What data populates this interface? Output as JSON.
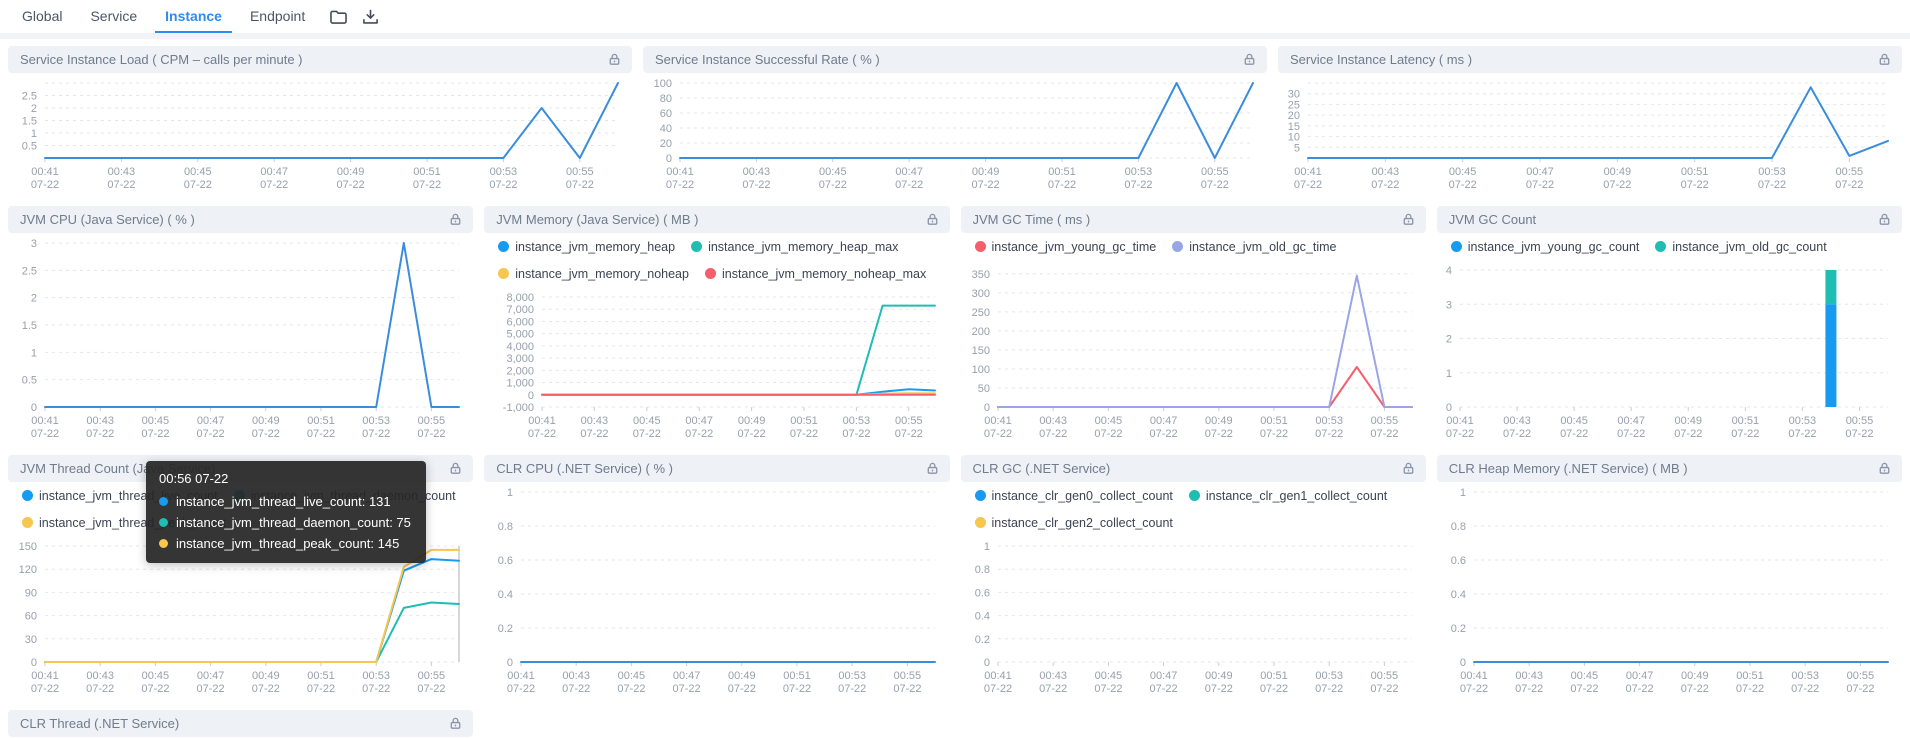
{
  "topbar": {
    "tabs": [
      {
        "label": "Global",
        "active": false
      },
      {
        "label": "Service",
        "active": false
      },
      {
        "label": "Instance",
        "active": true
      },
      {
        "label": "Endpoint",
        "active": false
      }
    ],
    "icons": [
      "folder-icon",
      "download-icon"
    ]
  },
  "x_axis": {
    "times": [
      "00:41",
      "00:43",
      "00:45",
      "00:47",
      "00:49",
      "00:51",
      "00:53",
      "00:55"
    ],
    "date": "07-22",
    "points": 16
  },
  "tooltip": {
    "title": "00:56 07-22",
    "rows": [
      {
        "color": "#169bf0",
        "text": "instance_jvm_thread_live_count: 131"
      },
      {
        "color": "#1fbdb2",
        "text": "instance_jvm_thread_daemon_count: 75"
      },
      {
        "color": "#f6c64e",
        "text": "instance_jvm_thread_peak_count: 145"
      }
    ]
  },
  "charts": [
    {
      "id": "service-instance-load",
      "row": 1,
      "type": "line",
      "title": "Service Instance Load ( CPM – calls per minute )",
      "lock": true,
      "y_ticks": [
        0.5,
        1,
        1.5,
        2,
        2.5
      ],
      "grid_extra": [
        3
      ],
      "ylim": [
        0,
        3
      ],
      "series": [
        {
          "name": "load",
          "color": "#3a8ddc",
          "values": [
            0,
            0,
            0,
            0,
            0,
            0,
            0,
            0,
            0,
            0,
            0,
            0,
            0,
            2,
            0,
            3
          ]
        }
      ]
    },
    {
      "id": "service-instance-successful-rate",
      "row": 1,
      "type": "line",
      "title": "Service Instance Successful Rate ( % )",
      "lock": true,
      "y_ticks": [
        0,
        20,
        40,
        60,
        80,
        100
      ],
      "ylim": [
        0,
        100
      ],
      "series": [
        {
          "name": "rate",
          "color": "#3a8ddc",
          "values": [
            0,
            0,
            0,
            0,
            0,
            0,
            0,
            0,
            0,
            0,
            0,
            0,
            0,
            100,
            0,
            100
          ]
        }
      ]
    },
    {
      "id": "service-instance-latency",
      "row": 1,
      "type": "line",
      "title": "Service Instance Latency ( ms )",
      "lock": true,
      "y_ticks": [
        5,
        10,
        15,
        20,
        25,
        30
      ],
      "grid_extra": [
        35
      ],
      "ylim": [
        0,
        35
      ],
      "series": [
        {
          "name": "latency",
          "color": "#3a8ddc",
          "values": [
            0,
            0,
            0,
            0,
            0,
            0,
            0,
            0,
            0,
            0,
            0,
            0,
            0,
            33,
            1,
            8
          ]
        }
      ]
    },
    {
      "id": "jvm-cpu",
      "row": 2,
      "type": "line",
      "title": "JVM CPU (Java Service) ( % )",
      "lock": true,
      "y_ticks": [
        0,
        0.5,
        1,
        1.5,
        2,
        2.5,
        3
      ],
      "ylim": [
        0,
        3
      ],
      "series": [
        {
          "name": "cpu",
          "color": "#3a8ddc",
          "values": [
            0,
            0,
            0,
            0,
            0,
            0,
            0,
            0,
            0,
            0,
            0,
            0,
            0,
            3,
            0,
            0
          ]
        }
      ]
    },
    {
      "id": "jvm-memory",
      "row": 2,
      "type": "line",
      "title": "JVM Memory (Java Service) ( MB )",
      "lock": true,
      "legend": [
        [
          {
            "label": "instance_jvm_memory_heap",
            "color": "#169bf0"
          },
          {
            "label": "instance_jvm_memory_heap_max",
            "color": "#1fbdb2"
          }
        ],
        [
          {
            "label": "instance_jvm_memory_noheap",
            "color": "#f6c64e"
          },
          {
            "label": "instance_jvm_memory_noheap_max",
            "color": "#f75d6d"
          }
        ]
      ],
      "y_ticks": [
        -1000,
        0,
        1000,
        2000,
        3000,
        4000,
        5000,
        6000,
        7000,
        8000
      ],
      "y_tick_labels": [
        "-1,000",
        "0",
        "1,000",
        "2,000",
        "3,000",
        "4,000",
        "5,000",
        "6,000",
        "7,000",
        "8,000"
      ],
      "ylim": [
        -1000,
        8000
      ],
      "series": [
        {
          "name": "instance_jvm_memory_heap",
          "color": "#169bf0",
          "values": [
            0,
            0,
            0,
            0,
            0,
            0,
            0,
            0,
            0,
            0,
            0,
            0,
            0,
            250,
            450,
            350
          ]
        },
        {
          "name": "instance_jvm_memory_heap_max",
          "color": "#1fbdb2",
          "values": [
            0,
            0,
            0,
            0,
            0,
            0,
            0,
            0,
            0,
            0,
            0,
            0,
            0,
            7300,
            7300,
            7300
          ]
        },
        {
          "name": "instance_jvm_memory_noheap",
          "color": "#f6c64e",
          "values": [
            0,
            0,
            0,
            0,
            0,
            0,
            0,
            0,
            0,
            0,
            0,
            0,
            0,
            80,
            120,
            110
          ]
        },
        {
          "name": "instance_jvm_memory_noheap_max",
          "color": "#f75d6d",
          "values": [
            0,
            0,
            0,
            0,
            0,
            0,
            0,
            0,
            0,
            0,
            0,
            0,
            0,
            0,
            0,
            0
          ]
        }
      ]
    },
    {
      "id": "jvm-gc-time",
      "row": 2,
      "type": "line",
      "title": "JVM GC Time ( ms )",
      "lock": true,
      "legend": [
        [
          {
            "label": "instance_jvm_young_gc_time",
            "color": "#f75d6d"
          },
          {
            "label": "instance_jvm_old_gc_time",
            "color": "#9aa5e6"
          }
        ]
      ],
      "y_ticks": [
        0,
        50,
        100,
        150,
        200,
        250,
        300,
        350
      ],
      "ylim": [
        0,
        360
      ],
      "series": [
        {
          "name": "instance_jvm_young_gc_time",
          "color": "#f75d6d",
          "values": [
            0,
            0,
            0,
            0,
            0,
            0,
            0,
            0,
            0,
            0,
            0,
            0,
            0,
            105,
            0,
            0
          ]
        },
        {
          "name": "instance_jvm_old_gc_time",
          "color": "#9aa5e6",
          "values": [
            0,
            0,
            0,
            0,
            0,
            0,
            0,
            0,
            0,
            0,
            0,
            0,
            0,
            345,
            0,
            0
          ]
        }
      ]
    },
    {
      "id": "jvm-gc-count",
      "row": 2,
      "type": "bar",
      "title": "JVM GC Count",
      "lock": true,
      "legend": [
        [
          {
            "label": "instance_jvm_young_gc_count",
            "color": "#169bf0"
          },
          {
            "label": "instance_jvm_old_gc_count",
            "color": "#1fbdb2"
          }
        ]
      ],
      "y_ticks": [
        0,
        1,
        2,
        3,
        4
      ],
      "ylim": [
        0,
        4
      ],
      "series": [
        {
          "name": "instance_jvm_young_gc_count",
          "color": "#169bf0",
          "values": [
            0,
            0,
            0,
            0,
            0,
            0,
            0,
            0,
            0,
            0,
            0,
            0,
            0,
            3,
            0,
            0
          ]
        },
        {
          "name": "instance_jvm_old_gc_count",
          "color": "#1fbdb2",
          "values": [
            0,
            0,
            0,
            0,
            0,
            0,
            0,
            0,
            0,
            0,
            0,
            0,
            0,
            1,
            0,
            0
          ]
        }
      ]
    },
    {
      "id": "jvm-thread-count",
      "row": 3,
      "type": "line",
      "crosshair": 15,
      "title": "JVM Thread Count (Java Service)",
      "lock": true,
      "legend": [
        [
          {
            "label": "instance_jvm_thread_live_count",
            "color": "#169bf0"
          },
          {
            "label": "instance_jvm_thread_daemon_count",
            "color": "#1fbdb2"
          }
        ],
        [
          {
            "label": "instance_jvm_thread_peak_count",
            "color": "#f6c64e"
          }
        ]
      ],
      "y_ticks": [
        0,
        30,
        60,
        90,
        120,
        150
      ],
      "ylim": [
        0,
        150
      ],
      "series": [
        {
          "name": "instance_jvm_thread_live_count",
          "color": "#169bf0",
          "values": [
            0,
            0,
            0,
            0,
            0,
            0,
            0,
            0,
            0,
            0,
            0,
            0,
            0,
            118,
            133,
            131
          ]
        },
        {
          "name": "instance_jvm_thread_daemon_count",
          "color": "#1fbdb2",
          "values": [
            0,
            0,
            0,
            0,
            0,
            0,
            0,
            0,
            0,
            0,
            0,
            0,
            0,
            70,
            77,
            75
          ]
        },
        {
          "name": "instance_jvm_thread_peak_count",
          "color": "#f6c64e",
          "values": [
            0,
            0,
            0,
            0,
            0,
            0,
            0,
            0,
            0,
            0,
            0,
            0,
            0,
            123,
            145,
            145
          ]
        }
      ]
    },
    {
      "id": "clr-cpu",
      "row": 3,
      "type": "line",
      "title": "CLR CPU (.NET Service) ( % )",
      "lock": true,
      "y_ticks": [
        0,
        0.2,
        0.4,
        0.6,
        0.8,
        1
      ],
      "ylim": [
        0,
        1
      ],
      "series": [
        {
          "name": "clr_cpu",
          "color": "#3a8ddc",
          "values": [
            0,
            0,
            0,
            0,
            0,
            0,
            0,
            0,
            0,
            0,
            0,
            0,
            0,
            0,
            0,
            0
          ]
        }
      ]
    },
    {
      "id": "clr-gc",
      "row": 3,
      "type": "line",
      "title": "CLR GC (.NET Service)",
      "lock": true,
      "legend": [
        [
          {
            "label": "instance_clr_gen0_collect_count",
            "color": "#169bf0"
          },
          {
            "label": "instance_clr_gen1_collect_count",
            "color": "#1fbdb2"
          }
        ],
        [
          {
            "label": "instance_clr_gen2_collect_count",
            "color": "#f6c64e"
          }
        ]
      ],
      "y_ticks": [
        0,
        0.2,
        0.4,
        0.6,
        0.8,
        1
      ],
      "ylim": [
        0,
        1
      ],
      "series": []
    },
    {
      "id": "clr-heap-memory",
      "row": 3,
      "type": "line",
      "title": "CLR Heap Memory (.NET Service) ( MB )",
      "lock": true,
      "y_ticks": [
        0,
        0.2,
        0.4,
        0.6,
        0.8,
        1
      ],
      "ylim": [
        0,
        1
      ],
      "series": [
        {
          "name": "clr_heap",
          "color": "#3a8ddc",
          "values": [
            0,
            0,
            0,
            0,
            0,
            0,
            0,
            0,
            0,
            0,
            0,
            0,
            0,
            0,
            0,
            0
          ]
        }
      ]
    },
    {
      "id": "clr-thread",
      "row": 4,
      "type": "line",
      "title": "CLR Thread (.NET Service)",
      "lock": true,
      "y_ticks": [],
      "ylim": [
        0,
        1
      ],
      "series": []
    }
  ]
}
